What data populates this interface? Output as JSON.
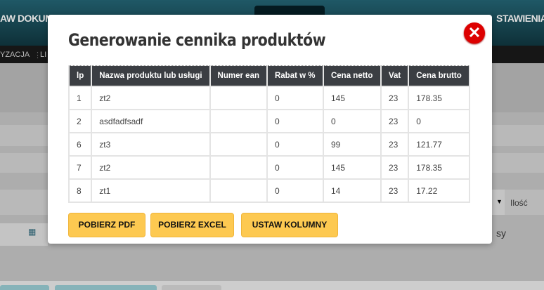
{
  "background": {
    "nav_left": "AW DOKUM",
    "nav_right": "STAWIENIA",
    "subnav_1": "YZACJA",
    "subnav_2": "LI",
    "qty_label": "Ilość",
    "partial_text": "sy"
  },
  "modal": {
    "title": "Generowanie cennika produktów",
    "columns": [
      "lp",
      "Nazwa produktu lub usługi",
      "Numer ean",
      "Rabat w %",
      "Cena netto",
      "Vat",
      "Cena brutto"
    ],
    "rows": [
      [
        "1",
        "zt2",
        "",
        "0",
        "145",
        "23",
        "178.35"
      ],
      [
        "2",
        "asdfadfsadf",
        "",
        "0",
        "0",
        "23",
        "0"
      ],
      [
        "6",
        "zt3",
        "",
        "0",
        "99",
        "23",
        "121.77"
      ],
      [
        "7",
        "zt2",
        "",
        "0",
        "145",
        "23",
        "178.35"
      ],
      [
        "8",
        "zt1",
        "",
        "0",
        "14",
        "23",
        "17.22"
      ]
    ],
    "buttons": {
      "pdf": "POBIERZ PDF",
      "excel": "POBIERZ EXCEL",
      "columns": "USTAW KOLUMNY"
    }
  },
  "colors": {
    "button": "#fdc951",
    "header_row": "#3b3e43",
    "close": "#dd0000"
  }
}
